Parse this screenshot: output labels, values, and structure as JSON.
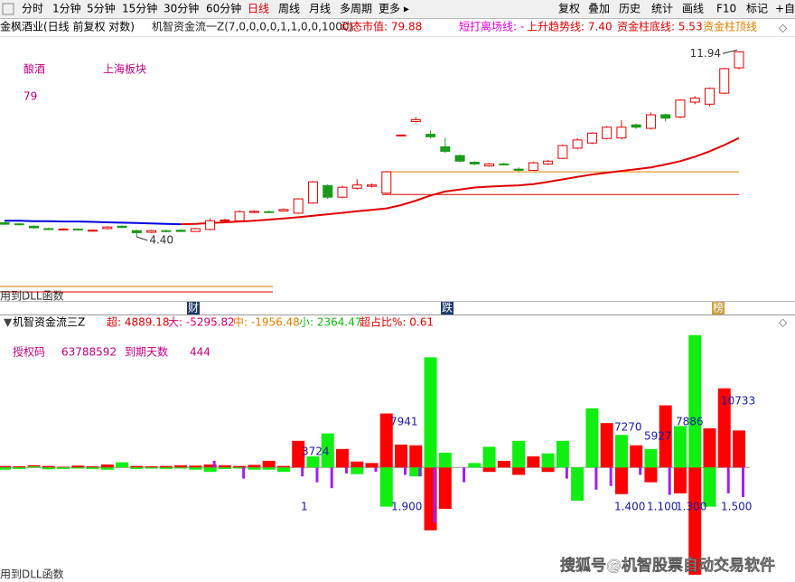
{
  "toolbar": {
    "left": [
      "分时",
      "1分钟",
      "5分钟",
      "15分钟",
      "30分钟",
      "60分钟",
      "日线",
      "周线",
      "月线",
      "多周期",
      "更多 ▸"
    ],
    "right": [
      "复权",
      "叠加",
      "历史",
      "统计",
      "画线",
      "F10",
      "标记",
      "+自"
    ]
  },
  "info": {
    "stock": "金枫酒业(日线 前复权 对数)",
    "indicator": "机智资金流一Z(7,0,0,0,0,1,1,0,0,1000)",
    "market_value": "动态市值: 79.88",
    "exit_line": "短打离场线: -",
    "trend_line": "上升趋势线: 7.40",
    "fund_bottom": "资金柱底线: 5.53",
    "fund_top": "资金柱顶线"
  },
  "main": {
    "industry": "酿酒",
    "board": "上海板块",
    "score": "79",
    "high_label": "11.94",
    "low_label": "4.40",
    "dll_note": "用到DLL函数",
    "markers": [
      "财",
      "跌",
      "榜"
    ]
  },
  "lower": {
    "indicator": "机智资金流三Z",
    "super": "超: 4889.18",
    "big": "大: -5295.82",
    "mid": "中: -1956.48",
    "small": "小: 2364.47",
    "ratio": "超占比%: 0.61",
    "auth_label": "授权码",
    "auth_code": "63788592",
    "days_label": "到期天数",
    "days": "444",
    "bar_labels": [
      "3724",
      "7941",
      "7270",
      "5927",
      "7886",
      "10733",
      "1",
      "1.900",
      "1.400",
      "1.100",
      "1.300",
      "1.500"
    ],
    "dll_note": "用到DLL函数"
  },
  "watermark": "搜狐号@机智股票自动交易软件",
  "chart_data": [
    {
      "type": "candlestick",
      "log": true,
      "ylim": [
        3.16,
        12.99
      ],
      "up_color": "#e00000",
      "down_color": "#1a9a1a",
      "open": [
        4.75,
        4.72,
        4.66,
        4.6,
        4.58,
        4.59,
        4.55,
        4.6,
        4.66,
        4.55,
        4.51,
        4.55,
        4.56,
        4.53,
        4.58,
        4.8,
        4.8,
        5.02,
        5.04,
        5.06,
        5.0,
        5.28,
        5.8,
        5.45,
        5.72,
        5.78,
        5.57,
        7.6,
        8.2,
        7.65,
        7.15,
        6.82,
        6.58,
        6.45,
        6.52,
        6.34,
        6.3,
        6.52,
        6.72,
        7.1,
        7.3,
        7.48,
        7.5,
        8.05,
        7.9,
        8.5,
        8.4,
        9.1,
        9.0,
        9.55,
        10.95
      ],
      "close": [
        4.71,
        4.7,
        4.62,
        4.58,
        4.59,
        4.57,
        4.56,
        4.64,
        4.63,
        4.5,
        4.55,
        4.53,
        4.53,
        4.6,
        4.8,
        4.82,
        5.04,
        5.05,
        5.03,
        5.1,
        5.4,
        5.92,
        5.45,
        5.75,
        5.82,
        5.82,
        6.25,
        7.62,
        8.28,
        7.55,
        6.98,
        6.62,
        6.52,
        6.52,
        6.5,
        6.3,
        6.56,
        6.62,
        7.2,
        7.42,
        7.7,
        7.95,
        7.95,
        7.95,
        8.5,
        8.35,
        9.2,
        9.3,
        9.8,
        10.9,
        11.94
      ],
      "high": [
        4.77,
        4.74,
        4.68,
        4.62,
        4.61,
        4.6,
        4.58,
        4.66,
        4.68,
        4.57,
        4.57,
        4.57,
        4.58,
        4.62,
        4.86,
        4.85,
        5.08,
        5.08,
        5.07,
        5.13,
        5.42,
        5.95,
        5.84,
        5.8,
        6.0,
        5.86,
        6.28,
        7.64,
        8.4,
        7.8,
        7.5,
        6.86,
        6.62,
        6.55,
        6.56,
        6.4,
        6.6,
        6.66,
        7.24,
        7.48,
        7.74,
        8.0,
        8.25,
        8.1,
        8.6,
        8.55,
        9.25,
        9.4,
        9.85,
        10.95,
        11.94
      ],
      "low": [
        4.69,
        4.68,
        4.6,
        4.57,
        4.56,
        4.55,
        4.53,
        4.58,
        4.61,
        4.4,
        4.49,
        4.51,
        4.52,
        4.52,
        4.56,
        4.78,
        4.78,
        5.0,
        5.01,
        5.05,
        4.98,
        5.26,
        5.4,
        5.42,
        5.68,
        5.74,
        5.55,
        7.58,
        8.15,
        7.48,
        6.92,
        6.58,
        6.48,
        6.42,
        6.46,
        6.26,
        6.28,
        6.48,
        6.7,
        7.05,
        7.26,
        7.44,
        7.45,
        7.88,
        7.85,
        8.2,
        8.35,
        9.0,
        8.9,
        9.5,
        10.85
      ],
      "lines": [
        {
          "color": "#0000e0",
          "values": [
            4.8,
            4.8,
            4.79,
            4.79,
            4.78,
            4.78,
            4.77,
            4.76,
            4.75,
            4.74,
            4.73,
            4.72,
            4.71,
            null,
            null,
            null,
            null,
            null,
            null,
            null,
            null,
            null,
            null,
            null,
            null,
            null,
            null,
            null,
            null,
            null,
            null,
            null,
            null,
            null,
            null,
            null,
            null,
            null,
            null,
            null,
            null,
            null,
            null,
            null,
            null,
            null,
            null,
            null,
            null,
            null,
            null
          ]
        },
        {
          "color": "#e00000",
          "values": [
            null,
            null,
            null,
            null,
            null,
            null,
            null,
            null,
            null,
            null,
            null,
            null,
            4.71,
            4.72,
            4.74,
            4.76,
            4.78,
            4.8,
            4.83,
            4.86,
            4.89,
            4.93,
            4.97,
            5.01,
            5.05,
            5.09,
            5.13,
            5.22,
            5.35,
            5.5,
            5.62,
            5.68,
            5.74,
            5.77,
            5.79,
            5.81,
            5.85,
            5.92,
            6.0,
            6.08,
            6.16,
            6.22,
            6.28,
            6.34,
            6.4,
            6.5,
            6.62,
            6.78,
            6.98,
            7.22,
            7.5
          ]
        }
      ],
      "levels": [
        {
          "color": "#e08000",
          "value": 6.25
        },
        {
          "color": "#e00000",
          "value": 5.53
        }
      ]
    },
    {
      "type": "bar",
      "ylim": [
        -15000,
        18000
      ],
      "series": [
        {
          "color": "#ff0000",
          "values": [
            200,
            150,
            300,
            200,
            100,
            250,
            150,
            400,
            300,
            200,
            150,
            200,
            300,
            250,
            400,
            300,
            200,
            350,
            900,
            200,
            3600,
            0,
            0,
            2500,
            800,
            600,
            7300,
            3100,
            3000,
            -8500,
            -5600,
            0,
            0,
            -600,
            900,
            -1000,
            1500,
            -600,
            0,
            0,
            0,
            6000,
            -3600,
            3000,
            -2000,
            8400,
            -3500,
            -14500,
            5300,
            10700,
            5000
          ]
        },
        {
          "color": "#11ee11",
          "values": [
            -300,
            -200,
            150,
            -250,
            -200,
            -150,
            -200,
            -300,
            700,
            -200,
            -150,
            -200,
            -150,
            -300,
            -600,
            -200,
            -150,
            -300,
            -300,
            -600,
            0,
            1500,
            4600,
            0,
            -900,
            0,
            -5300,
            0,
            -1200,
            14900,
            2000,
            0,
            600,
            2800,
            0,
            3600,
            0,
            1900,
            3600,
            -4500,
            8000,
            0,
            4400,
            0,
            2500,
            0,
            5600,
            17900,
            -5300,
            0,
            0
          ]
        },
        {
          "color": "#a020f0",
          "values": [
            0,
            0,
            0,
            0,
            0,
            0,
            0,
            0,
            0,
            0,
            0,
            0,
            0,
            0,
            900,
            0,
            -1500,
            0,
            0,
            0,
            -1200,
            -2000,
            -2800,
            -800,
            0,
            -600,
            0,
            -1000,
            -1200,
            -7500,
            0,
            -2000,
            0,
            0,
            0,
            0,
            0,
            0,
            -1500,
            0,
            -3000,
            -2500,
            0,
            -1000,
            0,
            -3700,
            0,
            0,
            0,
            -3500,
            -4000
          ]
        }
      ]
    }
  ]
}
